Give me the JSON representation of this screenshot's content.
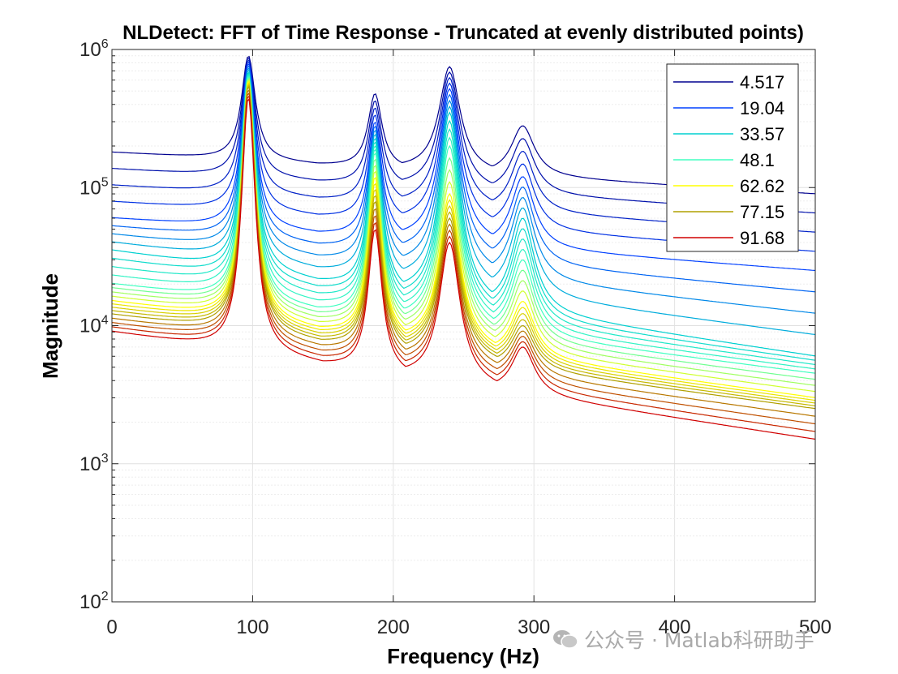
{
  "chart_data": {
    "type": "line",
    "title": "NLDetect:  FFT of Time Response - Truncated at evenly distributed points)",
    "xlabel": "Frequency (Hz)",
    "ylabel": "Magnitude",
    "xlim": [
      0,
      500
    ],
    "ylim": [
      100,
      1000000
    ],
    "yscale": "log",
    "x_ticks": [
      "0",
      "100",
      "200",
      "300",
      "400",
      "500"
    ],
    "y_ticks": [
      {
        "base": "10",
        "exp": "2"
      },
      {
        "base": "10",
        "exp": "3"
      },
      {
        "base": "10",
        "exp": "4"
      },
      {
        "base": "10",
        "exp": "5"
      },
      {
        "base": "10",
        "exp": "6"
      }
    ],
    "grid": true,
    "legend_position": "top-right",
    "legend": [
      {
        "label": "4.517",
        "color": "#00008f"
      },
      {
        "label": "19.04",
        "color": "#0040ff"
      },
      {
        "label": "33.57",
        "color": "#00d0d0"
      },
      {
        "label": " 48.1",
        "color": "#40ffc0"
      },
      {
        "label": "62.62",
        "color": "#ffff00"
      },
      {
        "label": "77.15",
        "color": "#b0a000"
      },
      {
        "label": "91.68",
        "color": "#d00000"
      }
    ],
    "resonances_hz": [
      97,
      187,
      240,
      292
    ],
    "series": [
      {
        "name": "4.517",
        "color": "#00008f",
        "start": 180000,
        "peaks": [
          900000,
          480000,
          750000,
          280000
        ],
        "tail": 90000
      },
      {
        "name": "19.04",
        "color": "#0040ff",
        "start": 60000,
        "peaks": [
          800000,
          300000,
          520000,
          120000
        ],
        "tail": 25000
      },
      {
        "name": "33.57",
        "color": "#00d0d0",
        "start": 35000,
        "peaks": [
          700000,
          230000,
          350000,
          60000
        ],
        "tail": 6000
      },
      {
        "name": "48.1",
        "color": "#40ffc0",
        "start": 20000,
        "peaks": [
          650000,
          180000,
          200000,
          30000
        ],
        "tail": 4500
      },
      {
        "name": "62.62",
        "color": "#ffff00",
        "start": 15000,
        "peaks": [
          600000,
          120000,
          90000,
          15000
        ],
        "tail": 3000
      },
      {
        "name": "77.15",
        "color": "#b0a000",
        "start": 12000,
        "peaks": [
          550000,
          80000,
          60000,
          10000
        ],
        "tail": 2500
      },
      {
        "name": "91.68",
        "color": "#d00000",
        "start": 9000,
        "peaks": [
          450000,
          50000,
          40000,
          7000
        ],
        "tail": 1500
      }
    ]
  },
  "watermark": {
    "text": "公众号 · Matlab科研助手"
  }
}
